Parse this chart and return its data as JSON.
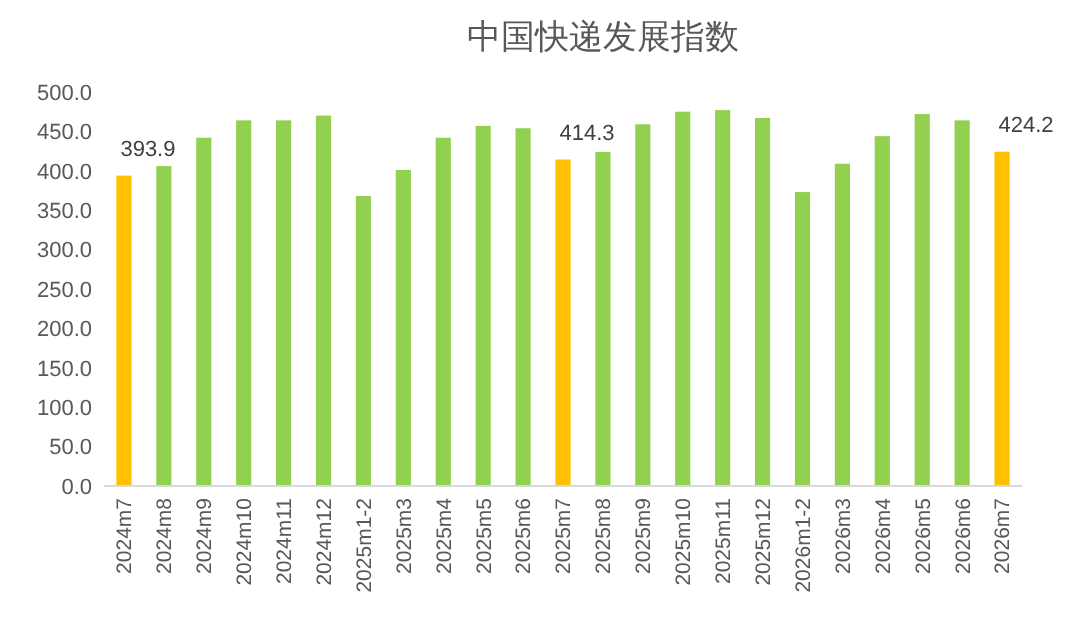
{
  "chart_data": {
    "type": "bar",
    "title": "中国快递发展指数",
    "categories": [
      "2024m7",
      "2024m8",
      "2024m9",
      "2024m10",
      "2024m11",
      "2024m12",
      "2025m1-2",
      "2025m3",
      "2025m4",
      "2025m5",
      "2025m6",
      "2025m7",
      "2025m8",
      "2025m9",
      "2025m10",
      "2025m11",
      "2025m12",
      "2026m1-2",
      "2026m3",
      "2026m4",
      "2026m5",
      "2026m6",
      "2026m7"
    ],
    "values": [
      393.9,
      406,
      442,
      464,
      464,
      470,
      368,
      401,
      442,
      457,
      454,
      414.3,
      424,
      459,
      475,
      477,
      467,
      373,
      409,
      444,
      472,
      464,
      424.2
    ],
    "colors": [
      "#ffc000",
      "#92d050",
      "#92d050",
      "#92d050",
      "#92d050",
      "#92d050",
      "#92d050",
      "#92d050",
      "#92d050",
      "#92d050",
      "#92d050",
      "#ffc000",
      "#92d050",
      "#92d050",
      "#92d050",
      "#92d050",
      "#92d050",
      "#92d050",
      "#92d050",
      "#92d050",
      "#92d050",
      "#92d050",
      "#ffc000"
    ],
    "value_labels": [
      "393.9",
      null,
      null,
      null,
      null,
      null,
      null,
      null,
      null,
      null,
      null,
      "414.3",
      null,
      null,
      null,
      null,
      null,
      null,
      null,
      null,
      null,
      null,
      "424.2"
    ],
    "ylim": [
      0,
      500
    ],
    "yticks": [
      {
        "value": 0,
        "label": "0.0"
      },
      {
        "value": 50,
        "label": "50.0"
      },
      {
        "value": 100,
        "label": "100.0"
      },
      {
        "value": 150,
        "label": "150.0"
      },
      {
        "value": 200,
        "label": "200.0"
      },
      {
        "value": 250,
        "label": "250.0"
      },
      {
        "value": 300,
        "label": "300.0"
      },
      {
        "value": 350,
        "label": "350.0"
      },
      {
        "value": 400,
        "label": "400.0"
      },
      {
        "value": 450,
        "label": "450.0"
      },
      {
        "value": 500,
        "label": "500.0"
      }
    ],
    "grid": false
  }
}
